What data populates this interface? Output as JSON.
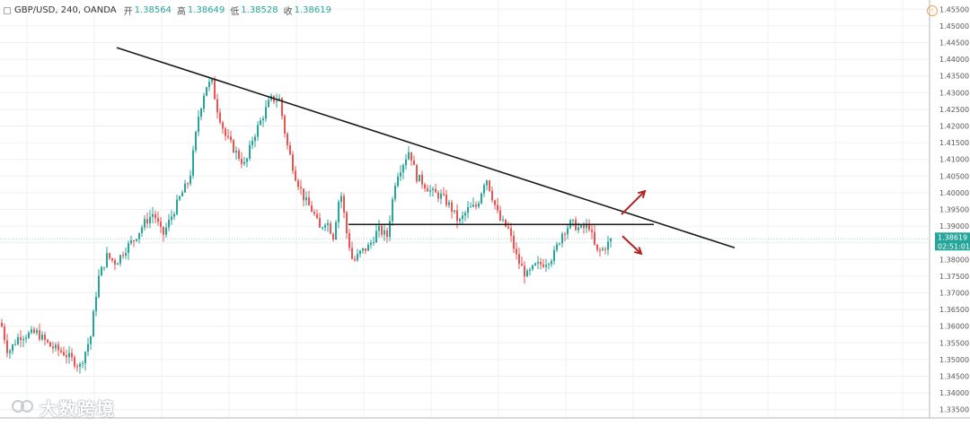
{
  "header": {
    "collapse_icon": "minus-box-icon",
    "symbol": "GBP/USD, 240, OANDA",
    "open_label": "开",
    "open_value": "1.38564",
    "high_label": "高",
    "high_value": "1.38649",
    "low_label": "低",
    "low_value": "1.38528",
    "close_label": "收",
    "close_value": "1.38619"
  },
  "watermark": "大数跨境",
  "alert_icon": "info-circle-icon",
  "colors": {
    "up": "#26a69a",
    "down": "#ef5350",
    "trendline": "#1a1a1a",
    "arrow": "#b22222",
    "price_tag": "#26a69a",
    "grid": "#eef1f4"
  },
  "chart_data": {
    "type": "candlestick",
    "symbol": "GBP/USD",
    "interval": "240",
    "source": "OANDA",
    "y_ticks": [
      "1.45500",
      "1.45000",
      "1.44500",
      "1.44000",
      "1.43500",
      "1.43000",
      "1.42500",
      "1.42000",
      "1.41500",
      "1.41000",
      "1.40500",
      "1.40000",
      "1.39500",
      "1.39000",
      "1.38500",
      "1.38000",
      "1.37500",
      "1.37000",
      "1.36500",
      "1.36000",
      "1.35500",
      "1.35000",
      "1.34500",
      "1.34000",
      "1.33500"
    ],
    "ylim": [
      1.3325,
      1.4575
    ],
    "last_price": "1.38619",
    "countdown": "02:51:01",
    "path": [
      [
        0,
        1.361
      ],
      [
        8,
        1.352
      ],
      [
        20,
        1.357
      ],
      [
        40,
        1.358
      ],
      [
        55,
        1.354
      ],
      [
        70,
        1.352
      ],
      [
        88,
        1.348
      ],
      [
        100,
        1.357
      ],
      [
        108,
        1.374
      ],
      [
        118,
        1.381
      ],
      [
        128,
        1.379
      ],
      [
        138,
        1.383
      ],
      [
        148,
        1.386
      ],
      [
        160,
        1.391
      ],
      [
        170,
        1.394
      ],
      [
        180,
        1.387
      ],
      [
        190,
        1.393
      ],
      [
        200,
        1.399
      ],
      [
        210,
        1.404
      ],
      [
        220,
        1.423
      ],
      [
        228,
        1.432
      ],
      [
        235,
        1.433
      ],
      [
        240,
        1.426
      ],
      [
        250,
        1.417
      ],
      [
        262,
        1.412
      ],
      [
        272,
        1.408
      ],
      [
        280,
        1.416
      ],
      [
        290,
        1.422
      ],
      [
        300,
        1.428
      ],
      [
        310,
        1.428
      ],
      [
        318,
        1.415
      ],
      [
        328,
        1.405
      ],
      [
        338,
        1.398
      ],
      [
        348,
        1.394
      ],
      [
        355,
        1.389
      ],
      [
        362,
        1.392
      ],
      [
        370,
        1.387
      ],
      [
        378,
        1.401
      ],
      [
        385,
        1.388
      ],
      [
        392,
        1.379
      ],
      [
        400,
        1.382
      ],
      [
        410,
        1.384
      ],
      [
        420,
        1.389
      ],
      [
        430,
        1.387
      ],
      [
        440,
        1.405
      ],
      [
        448,
        1.409
      ],
      [
        455,
        1.413
      ],
      [
        462,
        1.405
      ],
      [
        470,
        1.403
      ],
      [
        480,
        1.4
      ],
      [
        490,
        1.399
      ],
      [
        500,
        1.396
      ],
      [
        510,
        1.391
      ],
      [
        520,
        1.395
      ],
      [
        530,
        1.396
      ],
      [
        540,
        1.405
      ],
      [
        548,
        1.398
      ],
      [
        555,
        1.392
      ],
      [
        565,
        1.389
      ],
      [
        575,
        1.38
      ],
      [
        585,
        1.375
      ],
      [
        595,
        1.378
      ],
      [
        605,
        1.379
      ],
      [
        615,
        1.381
      ],
      [
        625,
        1.388
      ],
      [
        635,
        1.391
      ],
      [
        645,
        1.389
      ],
      [
        655,
        1.39
      ],
      [
        663,
        1.382
      ],
      [
        670,
        1.383
      ],
      [
        680,
        1.386
      ]
    ],
    "trendlines": [
      {
        "name": "descending-resistance",
        "from": [
          130,
          1.4435
        ],
        "to": [
          818,
          1.3835
        ]
      },
      {
        "name": "horizontal-support",
        "from": [
          388,
          1.3905
        ],
        "to": [
          728,
          1.3905
        ]
      }
    ],
    "arrows": [
      {
        "name": "breakout-up-arrow",
        "from": [
          692,
          1.3935
        ],
        "to": [
          718,
          1.4005
        ]
      },
      {
        "name": "breakdown-down-arrow",
        "from": [
          693,
          1.387
        ],
        "to": [
          714,
          1.3817
        ]
      }
    ]
  }
}
